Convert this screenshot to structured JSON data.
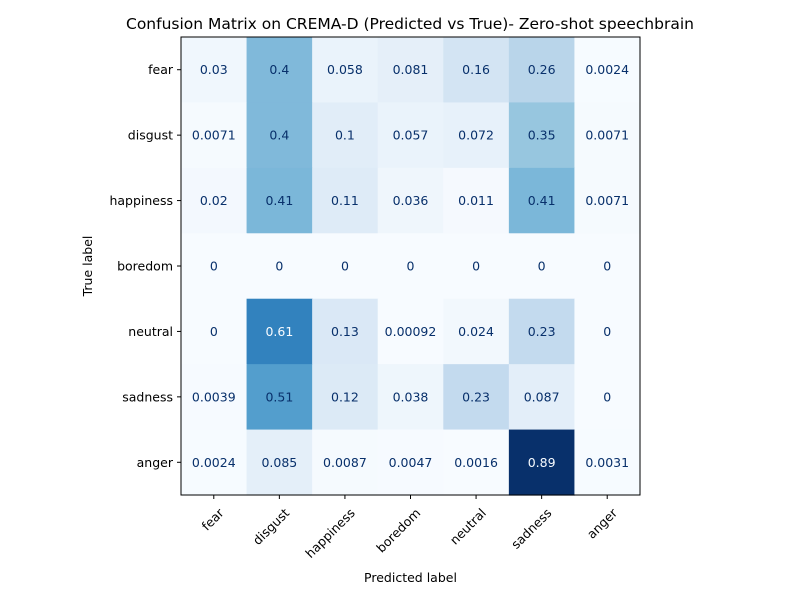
{
  "chart_data": {
    "type": "heatmap",
    "title": "Confusion Matrix on CREMA-D (Predicted vs True)- Zero-shot speechbrain",
    "xlabel": "Predicted label",
    "ylabel": "True label",
    "x_categories": [
      "fear",
      "disgust",
      "happiness",
      "boredom",
      "neutral",
      "sadness",
      "anger"
    ],
    "y_categories": [
      "fear",
      "disgust",
      "happiness",
      "boredom",
      "neutral",
      "sadness",
      "anger"
    ],
    "values": [
      [
        0.03,
        0.4,
        0.058,
        0.081,
        0.16,
        0.26,
        0.0024
      ],
      [
        0.0071,
        0.4,
        0.1,
        0.057,
        0.072,
        0.35,
        0.0071
      ],
      [
        0.02,
        0.41,
        0.11,
        0.036,
        0.011,
        0.41,
        0.0071
      ],
      [
        0,
        0,
        0,
        0,
        0,
        0,
        0
      ],
      [
        0,
        0.61,
        0.13,
        0.00092,
        0.024,
        0.23,
        0
      ],
      [
        0.0039,
        0.51,
        0.12,
        0.038,
        0.23,
        0.087,
        0
      ],
      [
        0.0024,
        0.085,
        0.0087,
        0.0047,
        0.0016,
        0.89,
        0.0031
      ]
    ],
    "value_labels": [
      [
        "0.03",
        "0.4",
        "0.058",
        "0.081",
        "0.16",
        "0.26",
        "0.0024"
      ],
      [
        "0.0071",
        "0.4",
        "0.1",
        "0.057",
        "0.072",
        "0.35",
        "0.0071"
      ],
      [
        "0.02",
        "0.41",
        "0.11",
        "0.036",
        "0.011",
        "0.41",
        "0.0071"
      ],
      [
        "0",
        "0",
        "0",
        "0",
        "0",
        "0",
        "0"
      ],
      [
        "0",
        "0.61",
        "0.13",
        "0.00092",
        "0.024",
        "0.23",
        "0"
      ],
      [
        "0.0039",
        "0.51",
        "0.12",
        "0.038",
        "0.23",
        "0.087",
        "0"
      ],
      [
        "0.0024",
        "0.085",
        "0.0087",
        "0.0047",
        "0.0016",
        "0.89",
        "0.0031"
      ]
    ],
    "colormap": "Blues",
    "value_range": [
      0,
      0.89
    ],
    "grid": false,
    "legend": "none"
  }
}
